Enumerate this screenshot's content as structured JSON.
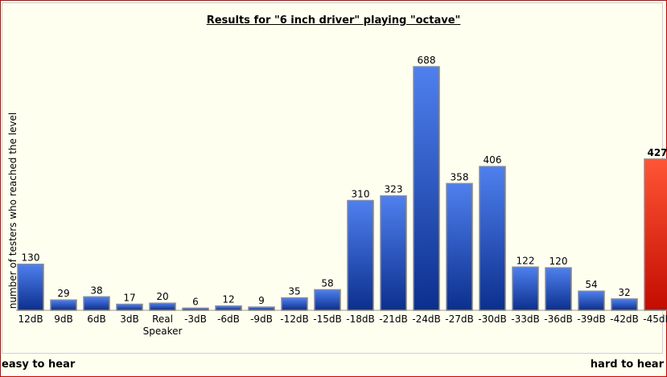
{
  "chart_data": {
    "type": "bar",
    "title": "Results for \"6 inch driver\" playing \"octave\"",
    "ylabel": "number of testers who reached the level",
    "xlabel": "",
    "categories": [
      "12dB",
      "9dB",
      "6dB",
      "3dB",
      "Real Speaker",
      "-3dB",
      "-6dB",
      "-9dB",
      "-12dB",
      "-15dB",
      "-18dB",
      "-21dB",
      "-24dB",
      "-27dB",
      "-30dB",
      "-33dB",
      "-36dB",
      "-39dB",
      "-42dB",
      "-45dB"
    ],
    "values": [
      130,
      29,
      38,
      17,
      20,
      6,
      12,
      9,
      35,
      58,
      310,
      323,
      688,
      358,
      406,
      122,
      120,
      54,
      32,
      427
    ],
    "highlight_index": 19,
    "ylim": [
      0,
      688
    ],
    "grid": false,
    "colors": {
      "bar": "#2f5bd6",
      "highlight": "#e8321c",
      "background": "#fffff0",
      "frame": "#cc0000"
    }
  },
  "footer": {
    "left": "easy to hear",
    "right": "hard to hear"
  }
}
